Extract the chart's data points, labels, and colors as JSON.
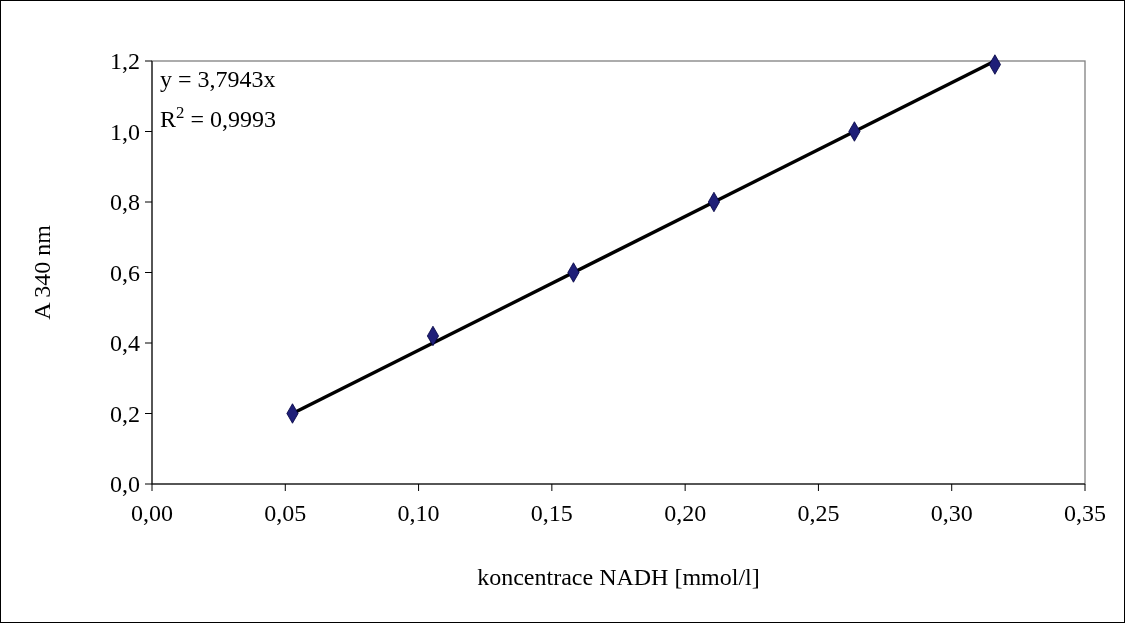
{
  "chart_data": {
    "type": "scatter",
    "xlabel": "koncentrace NADH [mmol/l]",
    "ylabel": "A 340 nm",
    "xlim": [
      0,
      0.35
    ],
    "xticks": [
      {
        "value": 0,
        "label": "0,00"
      },
      {
        "value": 0.05,
        "label": "0,05"
      },
      {
        "value": 0.1,
        "label": "0,10"
      },
      {
        "value": 0.15,
        "label": "0,15"
      },
      {
        "value": 0.2,
        "label": "0,20"
      },
      {
        "value": 0.25,
        "label": "0,25"
      },
      {
        "value": 0.3,
        "label": "0,30"
      },
      {
        "value": 0.35,
        "label": "0,35"
      }
    ],
    "ylim": [
      0,
      1.2
    ],
    "yticks": [
      {
        "value": 0,
        "label": "0,0"
      },
      {
        "value": 0.2,
        "label": "0,2"
      },
      {
        "value": 0.4,
        "label": "0,4"
      },
      {
        "value": 0.6,
        "label": "0,6"
      },
      {
        "value": 0.8,
        "label": "0,8"
      },
      {
        "value": 1.0,
        "label": "1,0"
      },
      {
        "value": 1.2,
        "label": "1,2"
      }
    ],
    "series": [
      {
        "type": "line",
        "color": "#000000",
        "marker": "none",
        "line_style": "solid",
        "x": [
          0.0527,
          0.3162
        ],
        "values": [
          0.2,
          1.2
        ]
      },
      {
        "color": "#1f1f78",
        "marker": "diamond",
        "x": [
          0.0527,
          0.1054,
          0.1581,
          0.2108,
          0.2635,
          0.3162
        ],
        "values": [
          0.2,
          0.42,
          0.6,
          0.8,
          1.0,
          1.19
        ]
      }
    ],
    "annotations": [
      "y = 3,7943x",
      "R$^{2}$ = 0,9993"
    ]
  }
}
